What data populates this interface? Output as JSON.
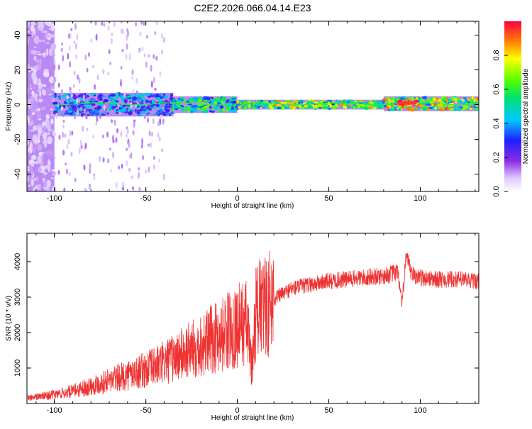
{
  "title": "C2E2.2026.066.04.14.E23",
  "chart_data": [
    {
      "type": "heatmap",
      "xlabel": "Height of straight line (km)",
      "ylabel": "Frequency (Hz)",
      "xlim": [
        -115,
        132
      ],
      "ylim": [
        -50,
        48
      ],
      "xticks": [
        -100,
        -50,
        0,
        50,
        100
      ],
      "xtick_labels": [
        "-100",
        "-50",
        "0",
        "50",
        "100"
      ],
      "yticks": [
        -40,
        -20,
        0,
        20,
        40
      ],
      "ytick_labels": [
        "-40",
        "-20",
        "0",
        "20",
        "40"
      ],
      "colorbar": {
        "label": "Normalized spectral amplitude",
        "range": [
          0,
          1
        ],
        "ticks": [
          0.0,
          0.2,
          0.4,
          0.6,
          0.8
        ],
        "tick_labels": [
          "0.0",
          "0.2",
          "0.4",
          "0.6",
          "0.8"
        ],
        "colormap": "rainbow (violet to red)"
      },
      "features": [
        {
          "x_range": [
            -115,
            -100
          ],
          "freq_range": [
            -50,
            48
          ],
          "amplitude": 0.1,
          "note": "broadband noise"
        },
        {
          "x_range": [
            -100,
            -35
          ],
          "freq_range": [
            -6,
            6
          ],
          "amplitude": 0.4,
          "note": "strong band"
        },
        {
          "x_range": [
            -35,
            0
          ],
          "freq_range": [
            -4,
            4
          ],
          "amplitude": 0.55
        },
        {
          "x_range": [
            0,
            80
          ],
          "freq_range": [
            -2,
            2
          ],
          "amplitude": 0.7
        },
        {
          "x_range": [
            80,
            132
          ],
          "freq_range": [
            -3,
            4
          ],
          "amplitude": 0.75
        },
        {
          "x_range": [
            88,
            98
          ],
          "freq_range": [
            0,
            2
          ],
          "amplitude": 0.95,
          "note": "peak"
        }
      ]
    },
    {
      "type": "line",
      "xlabel": "Height of straight line (km)",
      "ylabel": "SNR (10 * v/v)",
      "xlim": [
        -115,
        132
      ],
      "ylim": [
        0,
        4800
      ],
      "xticks": [
        -100,
        -50,
        0,
        50,
        100
      ],
      "xtick_labels": [
        "-100",
        "-50",
        "0",
        "50",
        "100"
      ],
      "yticks": [
        1000,
        2000,
        3000,
        4000
      ],
      "ytick_labels": [
        "1000",
        "2000",
        "3000",
        "4000"
      ],
      "color": "#ee3333",
      "series": [
        {
          "name": "SNR",
          "x": [
            -115,
            -100,
            -90,
            -80,
            -70,
            -60,
            -50,
            -40,
            -30,
            -20,
            -10,
            0,
            5,
            8,
            10,
            15,
            20,
            30,
            40,
            50,
            60,
            70,
            80,
            88,
            90,
            92,
            95,
            100,
            110,
            120,
            132
          ],
          "y": [
            150,
            250,
            350,
            500,
            650,
            800,
            950,
            1150,
            1400,
            1650,
            1900,
            2200,
            2300,
            1000,
            2600,
            2700,
            2950,
            3250,
            3350,
            3450,
            3500,
            3550,
            3600,
            3700,
            2700,
            4200,
            3650,
            3550,
            3500,
            3500,
            3450
          ]
        }
      ]
    }
  ]
}
